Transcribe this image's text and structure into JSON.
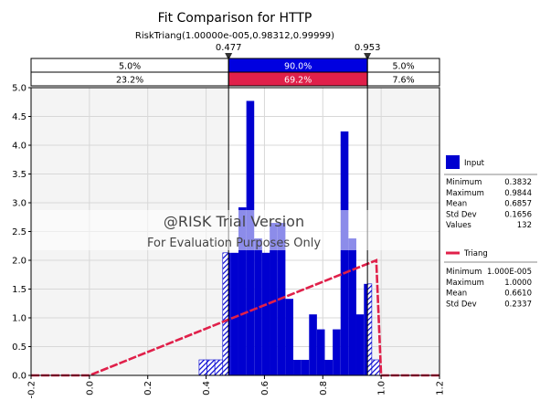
{
  "chart_data": {
    "type": "histogram",
    "title": "Fit Comparison for HTTP",
    "subtitle": "RiskTriang(1.00000e-005,0.98312,0.99999)",
    "xlim": [
      -0.2,
      1.2
    ],
    "ylim": [
      0,
      5
    ],
    "x_ticks": [
      "-0.2",
      "0.0",
      "0.2",
      "0.4",
      "0.6",
      "0.8",
      "1.0",
      "1.2"
    ],
    "y_ticks": [
      "0.0",
      "0.5",
      "1.0",
      "1.5",
      "2.0",
      "2.5",
      "3.0",
      "3.5",
      "4.0",
      "4.5",
      "5.0"
    ],
    "grid": true,
    "left_marker": {
      "value": 0.477,
      "label": "0.477"
    },
    "right_marker": {
      "value": 0.953,
      "label": "0.953"
    },
    "input_percentages": [
      "5.0%",
      "90.0%",
      "5.0%"
    ],
    "fit_percentages": [
      "23.2%",
      "69.2%",
      "7.6%"
    ],
    "histogram": {
      "name": "Input",
      "color": "#0000d0",
      "bin_width": 0.0269,
      "bins": [
        {
          "x": 0.376,
          "h": 0.27
        },
        {
          "x": 0.403,
          "h": 0.27
        },
        {
          "x": 0.43,
          "h": 0.27
        },
        {
          "x": 0.457,
          "h": 2.13
        },
        {
          "x": 0.484,
          "h": 2.13
        },
        {
          "x": 0.511,
          "h": 2.92
        },
        {
          "x": 0.538,
          "h": 4.77
        },
        {
          "x": 0.565,
          "h": 2.38
        },
        {
          "x": 0.592,
          "h": 2.13
        },
        {
          "x": 0.618,
          "h": 2.65
        },
        {
          "x": 0.645,
          "h": 2.65
        },
        {
          "x": 0.672,
          "h": 1.33
        },
        {
          "x": 0.699,
          "h": 0.27
        },
        {
          "x": 0.726,
          "h": 0.27
        },
        {
          "x": 0.753,
          "h": 1.06
        },
        {
          "x": 0.78,
          "h": 0.8
        },
        {
          "x": 0.807,
          "h": 0.27
        },
        {
          "x": 0.834,
          "h": 0.8
        },
        {
          "x": 0.861,
          "h": 4.24
        },
        {
          "x": 0.888,
          "h": 2.38
        },
        {
          "x": 0.914,
          "h": 1.06
        },
        {
          "x": 0.941,
          "h": 1.59
        },
        {
          "x": 0.968,
          "h": 0.27
        }
      ]
    },
    "fit_curve": {
      "name": "Triang",
      "color": "#e0204a",
      "points": [
        [
          -0.2,
          0.0
        ],
        [
          1e-05,
          0.0
        ],
        [
          0.98312,
          2.0
        ],
        [
          0.99999,
          0.0
        ],
        [
          1.2,
          0.0
        ]
      ]
    },
    "legend": {
      "placement": "right",
      "input": {
        "name": "Input",
        "stats": [
          [
            "Minimum",
            "0.3832"
          ],
          [
            "Maximum",
            "0.9844"
          ],
          [
            "Mean",
            "0.6857"
          ],
          [
            "Std Dev",
            "0.1656"
          ],
          [
            "Values",
            "132"
          ]
        ]
      },
      "fit": {
        "name": "Triang",
        "stats": [
          [
            "Minimum",
            "1.000E-005"
          ],
          [
            "Maximum",
            "1.0000"
          ],
          [
            "Mean",
            "0.6610"
          ],
          [
            "Std Dev",
            "0.2337"
          ]
        ]
      }
    },
    "watermark": [
      "@RISK Trial Version",
      "For Evaluation Purposes Only"
    ]
  }
}
